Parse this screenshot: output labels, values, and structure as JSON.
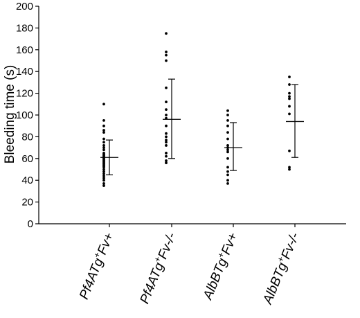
{
  "chart_data": {
    "type": "scatter",
    "ylabel": "Bleeding time (s)",
    "xlabel": "",
    "title": "",
    "ylim": [
      0,
      200
    ],
    "ytick_step": 20,
    "yticks": [
      "0",
      "20",
      "40",
      "60",
      "80",
      "100",
      "120",
      "140",
      "160",
      "180",
      "200"
    ],
    "grid": false,
    "categories": [
      {
        "id": "pf4-fv-pos",
        "label_parts": [
          "Pf4ATg",
          "+",
          "Fv+"
        ]
      },
      {
        "id": "pf4-fv-neg",
        "label_parts": [
          "Pf4ATg",
          "+",
          "Fv-/-"
        ]
      },
      {
        "id": "alb-fv-pos",
        "label_parts": [
          "AlbBTg",
          "+",
          "Fv+"
        ]
      },
      {
        "id": "alb-fv-neg",
        "label_parts": [
          "AlbBTg",
          "+",
          "Fv-/-"
        ]
      }
    ],
    "series": [
      {
        "points": [
          110,
          95,
          90,
          86,
          84,
          78,
          75,
          72,
          70,
          68,
          65,
          64,
          63,
          62,
          61,
          60,
          59,
          58,
          57,
          56,
          55,
          54,
          53,
          52,
          50,
          48,
          46,
          44,
          42,
          40,
          37,
          35
        ],
        "mean": 61,
        "sd_low": 45,
        "sd_high": 77
      },
      {
        "points": [
          175,
          158,
          155,
          150,
          125,
          112,
          105,
          100,
          97,
          90,
          83,
          80,
          77,
          75,
          72,
          65,
          62,
          58,
          56
        ],
        "mean": 96,
        "sd_low": 60,
        "sd_high": 133
      },
      {
        "points": [
          104,
          100,
          95,
          90,
          84,
          78,
          72,
          70,
          68,
          66,
          60,
          52,
          48,
          45,
          40,
          37
        ],
        "mean": 70,
        "sd_low": 49,
        "sd_high": 93
      },
      {
        "points": [
          135,
          128,
          120,
          117,
          115,
          108,
          101,
          67,
          52,
          50
        ],
        "mean": 94,
        "sd_low": 61,
        "sd_high": 128
      }
    ]
  }
}
